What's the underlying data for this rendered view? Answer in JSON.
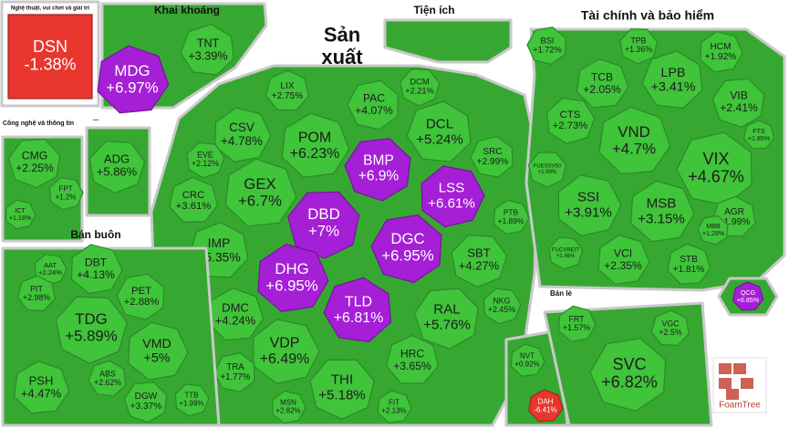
{
  "chart_data": {
    "type": "treemap",
    "watermark": "FoamTree",
    "groups": [
      {
        "name": "Nghệ thuật, vui chơi và giải trí",
        "cells": [
          {
            "name": "DSN",
            "value": -1.38,
            "value_label": "-1.38%",
            "color": "#e8362f"
          }
        ]
      },
      {
        "name": "Khai khoáng",
        "cells": [
          {
            "name": "MDG",
            "value": 6.97,
            "value_label": "+6.97%",
            "color": "#a51fd6"
          },
          {
            "name": "TNT",
            "value": 3.39,
            "value_label": "+3.39%",
            "color": "#3fc43a"
          }
        ]
      },
      {
        "name": "Sản xuất",
        "cells": [
          {
            "name": "LIX",
            "value": 2.75,
            "value_label": "+2.75%",
            "color": "#3fc43a"
          },
          {
            "name": "PAC",
            "value": 4.07,
            "value_label": "+4.07%",
            "color": "#3fc43a"
          },
          {
            "name": "DCM",
            "value": 2.21,
            "value_label": "+2.21%",
            "color": "#3fc43a"
          },
          {
            "name": "CSV",
            "value": 4.78,
            "value_label": "+4.78%",
            "color": "#3fc43a"
          },
          {
            "name": "POM",
            "value": 6.23,
            "value_label": "+6.23%",
            "color": "#3fc43a"
          },
          {
            "name": "DCL",
            "value": 5.24,
            "value_label": "+5.24%",
            "color": "#3fc43a"
          },
          {
            "name": "BMP",
            "value": 6.9,
            "value_label": "+6.9%",
            "color": "#a51fd6"
          },
          {
            "name": "EVE",
            "value": 2.12,
            "value_label": "+2.12%",
            "color": "#3fc43a"
          },
          {
            "name": "GEX",
            "value": 6.7,
            "value_label": "+6.7%",
            "color": "#3fc43a"
          },
          {
            "name": "CRC",
            "value": 3.61,
            "value_label": "+3.61%",
            "color": "#3fc43a"
          },
          {
            "name": "SRC",
            "value": 2.99,
            "value_label": "+2.99%",
            "color": "#3fc43a"
          },
          {
            "name": "DBD",
            "value": 7,
            "value_label": "+7%",
            "color": "#a51fd6"
          },
          {
            "name": "LSS",
            "value": 6.61,
            "value_label": "+6.61%",
            "color": "#a51fd6"
          },
          {
            "name": "PTB",
            "value": 1.89,
            "value_label": "+1.89%",
            "color": "#3fc43a"
          },
          {
            "name": "IMP",
            "value": 5.35,
            "value_label": "+5.35%",
            "color": "#3fc43a"
          },
          {
            "name": "DGC",
            "value": 6.95,
            "value_label": "+6.95%",
            "color": "#a51fd6"
          },
          {
            "name": "SBT",
            "value": 4.27,
            "value_label": "+4.27%",
            "color": "#3fc43a"
          },
          {
            "name": "DHG",
            "value": 6.95,
            "value_label": "+6.95%",
            "color": "#a51fd6"
          },
          {
            "name": "DMC",
            "value": 4.24,
            "value_label": "+4.24%",
            "color": "#3fc43a"
          },
          {
            "name": "TLD",
            "value": 6.81,
            "value_label": "+6.81%",
            "color": "#a51fd6"
          },
          {
            "name": "RAL",
            "value": 5.76,
            "value_label": "+5.76%",
            "color": "#3fc43a"
          },
          {
            "name": "NKG",
            "value": 2.45,
            "value_label": "+2.45%",
            "color": "#3fc43a"
          },
          {
            "name": "VDP",
            "value": 6.49,
            "value_label": "+6.49%",
            "color": "#3fc43a"
          },
          {
            "name": "HRC",
            "value": 3.65,
            "value_label": "+3.65%",
            "color": "#3fc43a"
          },
          {
            "name": "TRA",
            "value": 1.77,
            "value_label": "+1.77%",
            "color": "#3fc43a"
          },
          {
            "name": "THI",
            "value": 5.18,
            "value_label": "+5.18%",
            "color": "#3fc43a"
          },
          {
            "name": "MSN",
            "value": 2.82,
            "value_label": "+2.82%",
            "color": "#3fc43a"
          },
          {
            "name": "FIT",
            "value": 2.13,
            "value_label": "+2.13%",
            "color": "#3fc43a"
          }
        ]
      },
      {
        "name": "Tiện ích",
        "cells": []
      },
      {
        "name": "Tài chính và bảo hiểm",
        "cells": [
          {
            "name": "BSI",
            "value": 1.72,
            "value_label": "+1.72%",
            "color": "#3fc43a"
          },
          {
            "name": "TPB",
            "value": 1.36,
            "value_label": "+1.36%",
            "color": "#3fc43a"
          },
          {
            "name": "HCM",
            "value": 1.92,
            "value_label": "+1.92%",
            "color": "#3fc43a"
          },
          {
            "name": "TCB",
            "value": 2.05,
            "value_label": "+2.05%",
            "color": "#3fc43a"
          },
          {
            "name": "LPB",
            "value": 3.41,
            "value_label": "+3.41%",
            "color": "#3fc43a"
          },
          {
            "name": "VIB",
            "value": 2.41,
            "value_label": "+2.41%",
            "color": "#3fc43a"
          },
          {
            "name": "CTS",
            "value": 2.73,
            "value_label": "+2.73%",
            "color": "#3fc43a"
          },
          {
            "name": "VND",
            "value": 4.7,
            "value_label": "+4.7%",
            "color": "#3fc43a"
          },
          {
            "name": "FTS",
            "value": 1.85,
            "value_label": "+1.85%",
            "color": "#3fc43a"
          },
          {
            "name": "VIX",
            "value": 4.67,
            "value_label": "+4.67%",
            "color": "#3fc43a"
          },
          {
            "name": "FUESSV50",
            "value": 1.99,
            "value_label": "+1.99%",
            "color": "#3fc43a"
          },
          {
            "name": "SSI",
            "value": 3.91,
            "value_label": "+3.91%",
            "color": "#3fc43a"
          },
          {
            "name": "MSB",
            "value": 3.15,
            "value_label": "+3.15%",
            "color": "#3fc43a"
          },
          {
            "name": "AGR",
            "value": 1.99,
            "value_label": "+1.99%",
            "color": "#3fc43a"
          },
          {
            "name": "MBB",
            "value": 1.28,
            "value_label": "+1.28%",
            "color": "#3fc43a"
          },
          {
            "name": "FUCVREIT",
            "value": 1.46,
            "value_label": "+1.46%",
            "color": "#3fc43a"
          },
          {
            "name": "VCI",
            "value": 2.35,
            "value_label": "+2.35%",
            "color": "#3fc43a"
          },
          {
            "name": "STB",
            "value": 1.81,
            "value_label": "+1.81%",
            "color": "#3fc43a"
          }
        ]
      },
      {
        "name": "Công nghệ và thông tin",
        "cells": [
          {
            "name": "CMG",
            "value": 2.25,
            "value_label": "+2.25%",
            "color": "#3fc43a"
          },
          {
            "name": "FPT",
            "value": 1.2,
            "value_label": "+1.2%",
            "color": "#3fc43a"
          },
          {
            "name": "ICT",
            "value": 1.18,
            "value_label": "+1.18%",
            "color": "#3fc43a"
          }
        ]
      },
      {
        "name": "...",
        "cells": [
          {
            "name": "ADG",
            "value": 5.86,
            "value_label": "+5.86%",
            "color": "#3fc43a"
          }
        ]
      },
      {
        "name": "Bán buôn",
        "cells": [
          {
            "name": "AAT",
            "value": 2.24,
            "value_label": "+2.24%",
            "color": "#3fc43a"
          },
          {
            "name": "DBT",
            "value": 4.13,
            "value_label": "+4.13%",
            "color": "#3fc43a"
          },
          {
            "name": "PIT",
            "value": 2.98,
            "value_label": "+2.98%",
            "color": "#3fc43a"
          },
          {
            "name": "PET",
            "value": 2.88,
            "value_label": "+2.88%",
            "color": "#3fc43a"
          },
          {
            "name": "TDG",
            "value": 5.89,
            "value_label": "+5.89%",
            "color": "#3fc43a"
          },
          {
            "name": "VMD",
            "value": 5,
            "value_label": "+5%",
            "color": "#3fc43a"
          },
          {
            "name": "PSH",
            "value": 4.47,
            "value_label": "+4.47%",
            "color": "#3fc43a"
          },
          {
            "name": "ABS",
            "value": 2.62,
            "value_label": "+2.62%",
            "color": "#3fc43a"
          },
          {
            "name": "DGW",
            "value": 3.37,
            "value_label": "+3.37%",
            "color": "#3fc43a"
          },
          {
            "name": "TTB",
            "value": 1.99,
            "value_label": "+1.99%",
            "color": "#3fc43a"
          }
        ]
      },
      {
        "cells": [
          {
            "name": "NVT",
            "value": 0.92,
            "value_label": "+0.92%",
            "color": "#3fc43a"
          },
          {
            "name": "DAH",
            "value": -6.41,
            "value_label": "-6.41%",
            "color": "#e8362f"
          }
        ]
      },
      {
        "name": "Bán lẻ",
        "cells": [
          {
            "name": "FRT",
            "value": 1.57,
            "value_label": "+1.57%",
            "color": "#3fc43a"
          },
          {
            "name": "VGC",
            "value": 2.5,
            "value_label": "+2.5%",
            "color": "#3fc43a"
          },
          {
            "name": "SVC",
            "value": 6.82,
            "value_label": "+6.82%",
            "color": "#3fc43a"
          }
        ]
      },
      {
        "cells": [
          {
            "name": "QCG",
            "value": 6.85,
            "value_label": "+6.85%",
            "color": "#a51fd6"
          }
        ]
      }
    ]
  }
}
